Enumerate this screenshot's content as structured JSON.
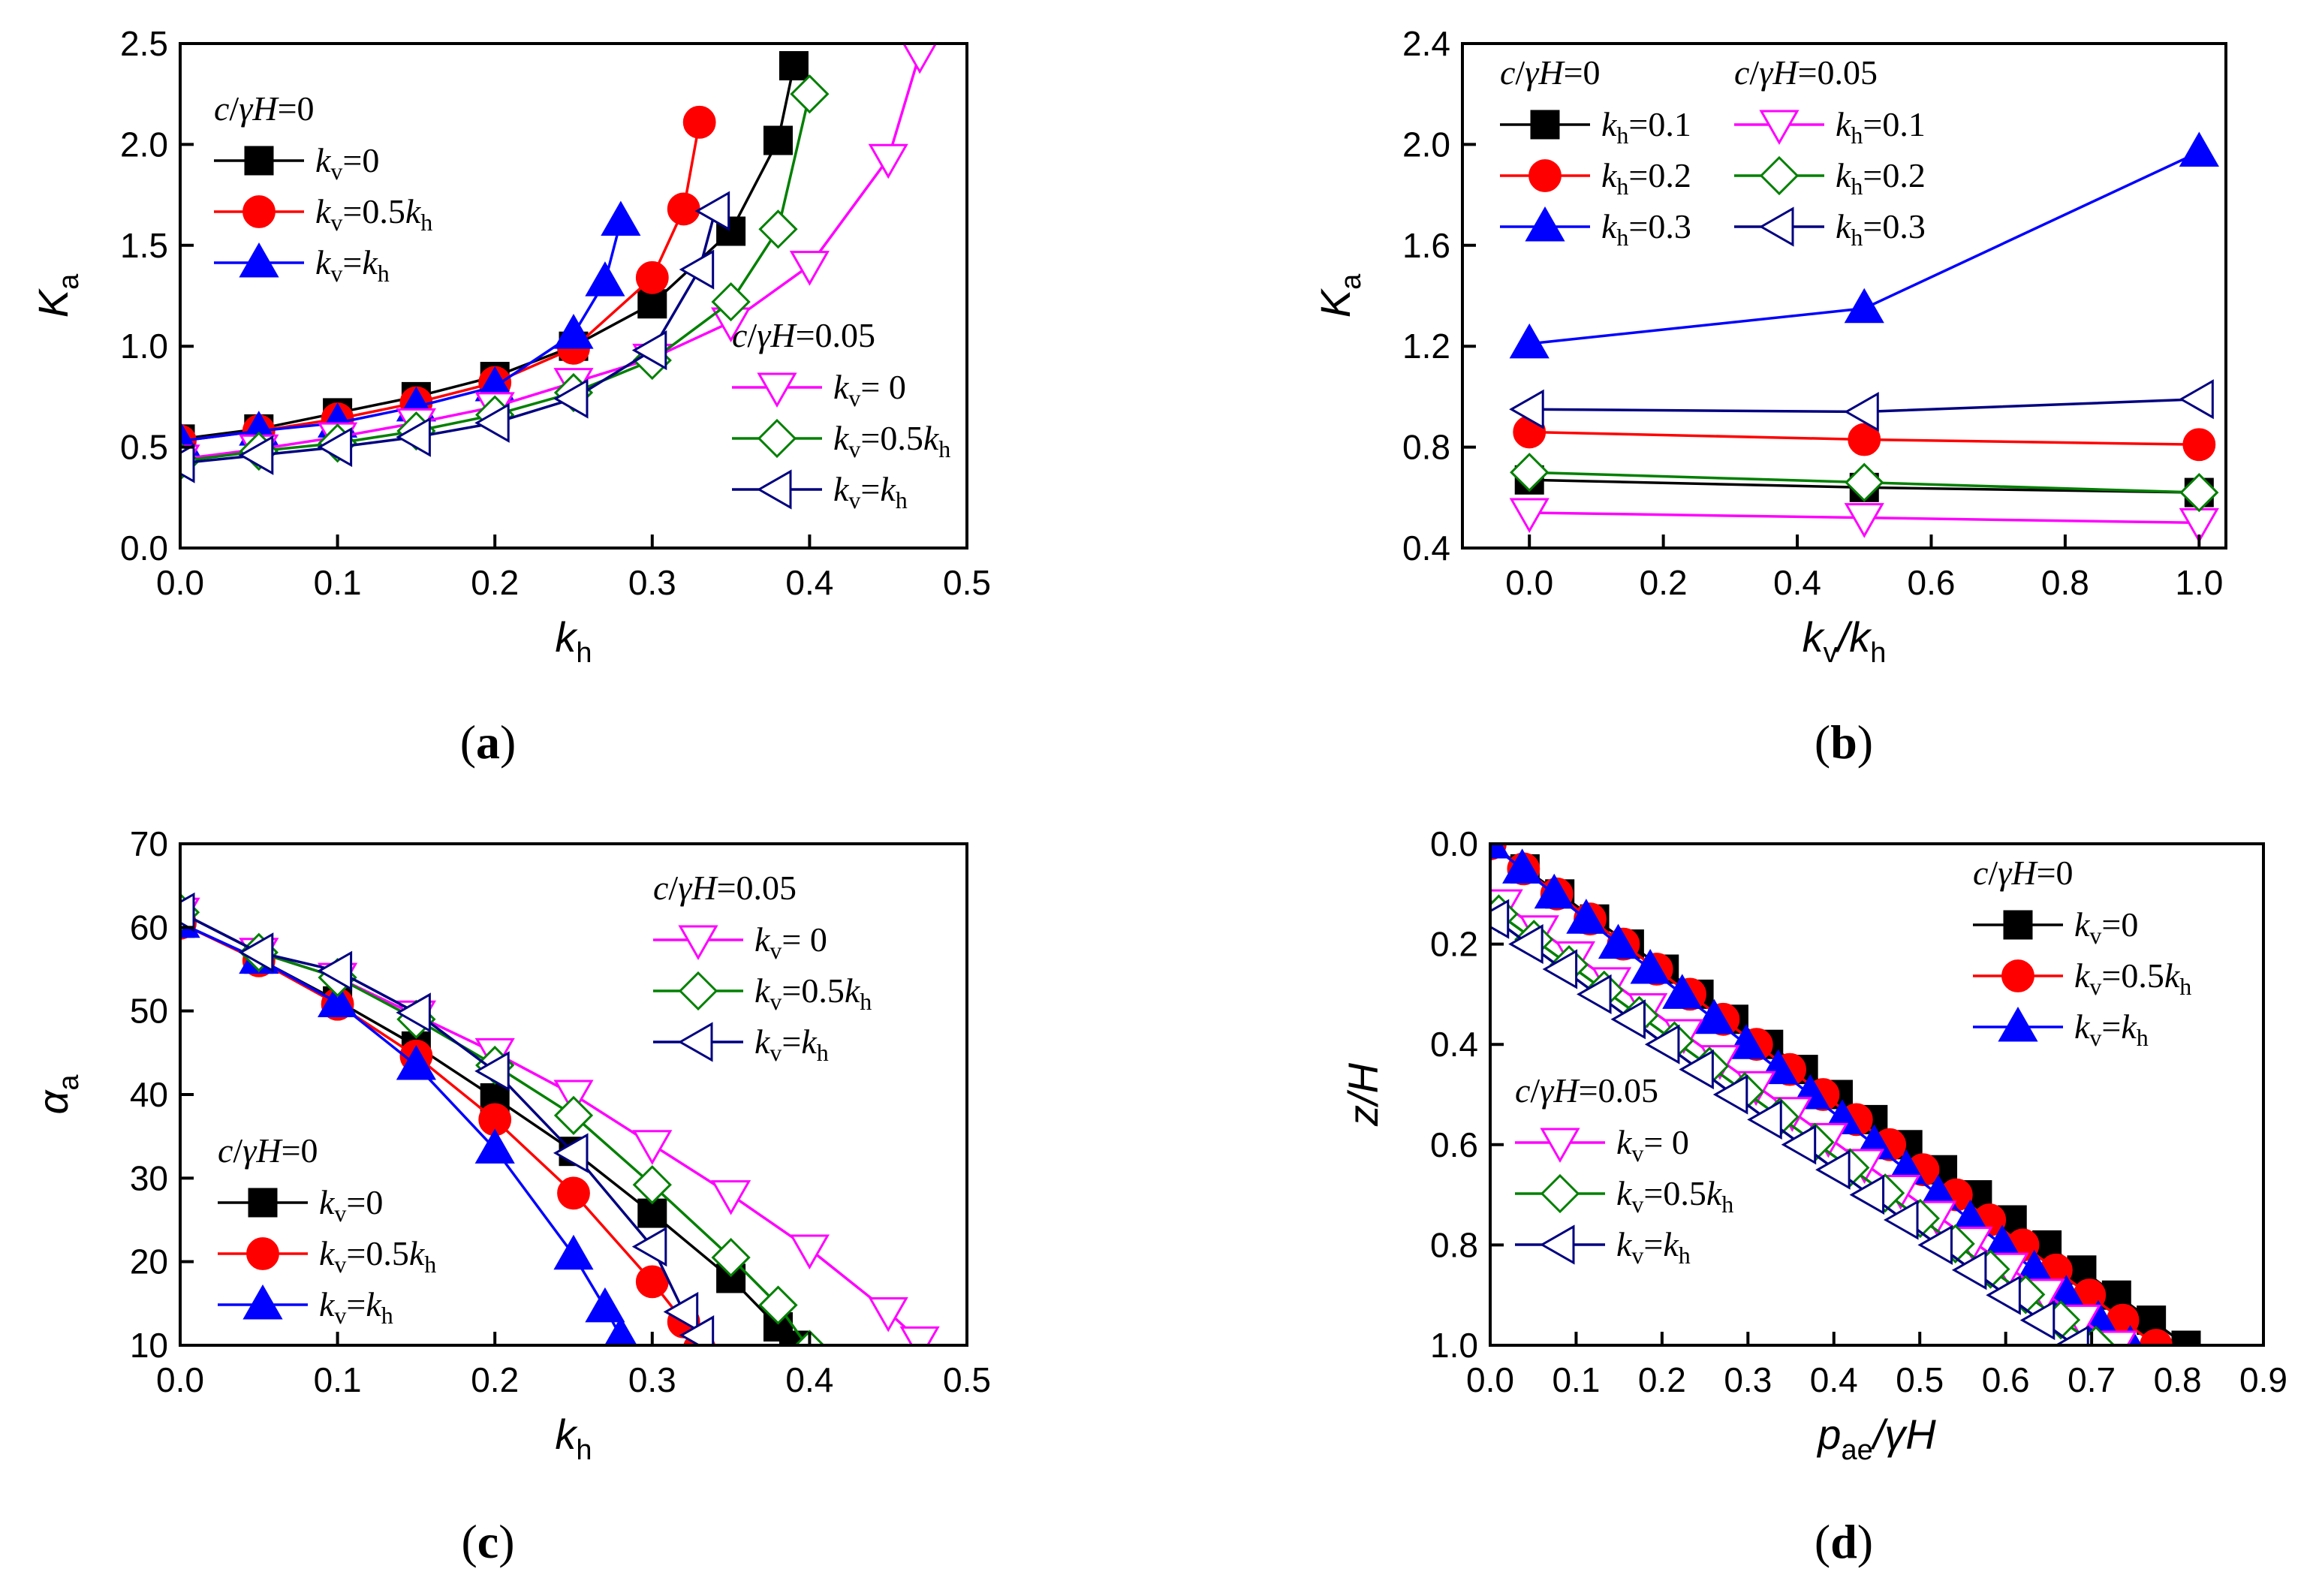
{
  "chart_data": [
    {
      "id": "a",
      "type": "line",
      "caption": "a",
      "xlabel": "k",
      "xlabel_sub": "h",
      "ylabel": "K",
      "ylabel_sub": "a",
      "xlim": [
        0,
        0.5
      ],
      "ylim": [
        0,
        2.5
      ],
      "xticks": [
        "0.0",
        "0.1",
        "0.2",
        "0.3",
        "0.4",
        "0.5"
      ],
      "yticks": [
        "0.0",
        "0.5",
        "1.0",
        "1.5",
        "2.0",
        "2.5"
      ],
      "xtick_values": [
        0,
        0.1,
        0.2,
        0.3,
        0.4,
        0.5
      ],
      "ytick_values": [
        0,
        0.5,
        1.0,
        1.5,
        2.0,
        2.5
      ],
      "legend_groups": [
        {
          "title": "c/γH=0",
          "position": "top-left"
        },
        {
          "title": "c/γH=0.05",
          "position": "bottom-right"
        }
      ],
      "series": [
        {
          "name": "kv=0",
          "label": {
            "main": "k",
            "sub": "v",
            "rest": "=0"
          },
          "group": 0,
          "color": "#000000",
          "marker": "square",
          "filled": true,
          "x": [
            0,
            0.05,
            0.1,
            0.15,
            0.2,
            0.25,
            0.3,
            0.35,
            0.38,
            0.39
          ],
          "y": [
            0.54,
            0.59,
            0.67,
            0.75,
            0.85,
            1.0,
            1.21,
            1.57,
            2.02,
            2.39
          ]
        },
        {
          "name": "kv=0.5kh",
          "label": {
            "main": "k",
            "sub": "v",
            "rest": "=0.5",
            "tail": "k",
            "tailsub": "h"
          },
          "group": 0,
          "color": "#ff0000",
          "marker": "circle",
          "filled": true,
          "x": [
            0,
            0.05,
            0.1,
            0.15,
            0.2,
            0.25,
            0.3,
            0.32,
            0.33
          ],
          "y": [
            0.53,
            0.58,
            0.64,
            0.72,
            0.82,
            0.99,
            1.34,
            1.68,
            2.11
          ]
        },
        {
          "name": "kv=kh",
          "label": {
            "main": "k",
            "sub": "v",
            "rest": "=",
            "tail": "k",
            "tailsub": "h"
          },
          "group": 0,
          "color": "#0000ff",
          "marker": "triangle-up",
          "filled": true,
          "x": [
            0,
            0.05,
            0.1,
            0.15,
            0.2,
            0.25,
            0.27,
            0.28
          ],
          "y": [
            0.53,
            0.58,
            0.62,
            0.7,
            0.8,
            1.06,
            1.32,
            1.62
          ]
        },
        {
          "name": "kv= 0",
          "label": {
            "main": "k",
            "sub": "v",
            "rest": "= 0"
          },
          "group": 1,
          "color": "#ff00ff",
          "marker": "triangle-down",
          "filled": false,
          "x": [
            0,
            0.05,
            0.1,
            0.15,
            0.2,
            0.25,
            0.3,
            0.35,
            0.4,
            0.45,
            0.47
          ],
          "y": [
            0.44,
            0.49,
            0.55,
            0.62,
            0.7,
            0.82,
            0.94,
            1.12,
            1.4,
            1.93,
            2.45
          ]
        },
        {
          "name": "kv=0.5kh",
          "label": {
            "main": "k",
            "sub": "v",
            "rest": "=0.5",
            "tail": "k",
            "tailsub": "h"
          },
          "group": 1,
          "color": "#008000",
          "marker": "diamond",
          "filled": false,
          "x": [
            0,
            0.05,
            0.1,
            0.15,
            0.2,
            0.25,
            0.3,
            0.35,
            0.38,
            0.4
          ],
          "y": [
            0.43,
            0.48,
            0.52,
            0.58,
            0.66,
            0.77,
            0.93,
            1.22,
            1.58,
            2.25
          ]
        },
        {
          "name": "kv=kh",
          "label": {
            "main": "k",
            "sub": "v",
            "rest": "=",
            "tail": "k",
            "tailsub": "h"
          },
          "group": 1,
          "color": "#000080",
          "marker": "triangle-left",
          "filled": false,
          "x": [
            0,
            0.05,
            0.1,
            0.15,
            0.2,
            0.25,
            0.3,
            0.33,
            0.34
          ],
          "y": [
            0.42,
            0.46,
            0.5,
            0.55,
            0.62,
            0.74,
            0.98,
            1.38,
            1.67
          ]
        }
      ]
    },
    {
      "id": "b",
      "type": "line",
      "caption": "b",
      "xlabel": "k",
      "xlabel_sub": "v",
      "xlabel_mid": "/k",
      "xlabel_sub2": "h",
      "ylabel": "K",
      "ylabel_sub": "a",
      "xlim": [
        -0.1,
        1.04
      ],
      "ylim": [
        0.4,
        2.4
      ],
      "xticks": [
        "0.0",
        "0.2",
        "0.4",
        "0.6",
        "0.8",
        "1.0"
      ],
      "yticks": [
        "0.4",
        "0.8",
        "1.2",
        "1.6",
        "2.0",
        "2.4"
      ],
      "xtick_values": [
        0,
        0.2,
        0.4,
        0.6,
        0.8,
        1.0
      ],
      "ytick_values": [
        0.4,
        0.8,
        1.2,
        1.6,
        2.0,
        2.4
      ],
      "legend_groups": [
        {
          "title": "c/γH=0",
          "position": "top-left"
        },
        {
          "title": "c/γH=0.05",
          "position": "top-center"
        }
      ],
      "series": [
        {
          "name": "kh=0.1",
          "label": {
            "main": "k",
            "sub": "h",
            "rest": "=0.1"
          },
          "group": 0,
          "color": "#000000",
          "marker": "square",
          "filled": true,
          "x": [
            0,
            0.5,
            1.0
          ],
          "y": [
            0.67,
            0.64,
            0.62
          ]
        },
        {
          "name": "kh=0.2",
          "label": {
            "main": "k",
            "sub": "h",
            "rest": "=0.2"
          },
          "group": 0,
          "color": "#ff0000",
          "marker": "circle",
          "filled": true,
          "x": [
            0,
            0.5,
            1.0
          ],
          "y": [
            0.86,
            0.83,
            0.81
          ]
        },
        {
          "name": "kh=0.3",
          "label": {
            "main": "k",
            "sub": "h",
            "rest": "=0.3"
          },
          "group": 0,
          "color": "#0000ff",
          "marker": "triangle-up",
          "filled": true,
          "x": [
            0,
            0.5,
            1.0
          ],
          "y": [
            1.21,
            1.35,
            1.97
          ]
        },
        {
          "name": "kh=0.1",
          "label": {
            "main": "k",
            "sub": "h",
            "rest": "=0.1"
          },
          "group": 1,
          "color": "#ff00ff",
          "marker": "triangle-down",
          "filled": false,
          "x": [
            0,
            0.5,
            1.0
          ],
          "y": [
            0.54,
            0.52,
            0.5
          ]
        },
        {
          "name": "kh=0.2",
          "label": {
            "main": "k",
            "sub": "h",
            "rest": "=0.2"
          },
          "group": 1,
          "color": "#008000",
          "marker": "diamond",
          "filled": false,
          "x": [
            0,
            0.5,
            1.0
          ],
          "y": [
            0.7,
            0.66,
            0.62
          ]
        },
        {
          "name": "kh=0.3",
          "label": {
            "main": "k",
            "sub": "h",
            "rest": "=0.3"
          },
          "group": 1,
          "color": "#000080",
          "marker": "triangle-left",
          "filled": false,
          "x": [
            0,
            0.5,
            1.0
          ],
          "y": [
            0.95,
            0.94,
            0.99
          ]
        }
      ]
    },
    {
      "id": "c",
      "type": "line",
      "caption": "c",
      "xlabel": "k",
      "xlabel_sub": "h",
      "ylabel": "α",
      "ylabel_sub": "a",
      "xlim": [
        0,
        0.5
      ],
      "ylim": [
        10,
        70
      ],
      "xticks": [
        "0.0",
        "0.1",
        "0.2",
        "0.3",
        "0.4",
        "0.5"
      ],
      "yticks": [
        "10",
        "20",
        "30",
        "40",
        "50",
        "60",
        "70"
      ],
      "xtick_values": [
        0,
        0.1,
        0.2,
        0.3,
        0.4,
        0.5
      ],
      "ytick_values": [
        10,
        20,
        30,
        40,
        50,
        60,
        70
      ],
      "legend_groups": [
        {
          "title": "c/γH=0",
          "position": "bottom-left"
        },
        {
          "title": "c/γH=0.05",
          "position": "top-right"
        }
      ],
      "series": [
        {
          "name": "kv=0",
          "label": {
            "main": "k",
            "sub": "v",
            "rest": "=0"
          },
          "group": 0,
          "color": "#000000",
          "marker": "square",
          "filled": true,
          "x": [
            0,
            0.05,
            0.1,
            0.15,
            0.2,
            0.25,
            0.3,
            0.35,
            0.38,
            0.39
          ],
          "y": [
            60.5,
            56.2,
            51.2,
            45.8,
            39.6,
            33.2,
            25.8,
            18.0,
            12.2,
            10.0
          ]
        },
        {
          "name": "kv=0.5kh",
          "label": {
            "main": "k",
            "sub": "v",
            "rest": "=0.5",
            "tail": "k",
            "tailsub": "h"
          },
          "group": 0,
          "color": "#ff0000",
          "marker": "circle",
          "filled": true,
          "x": [
            0,
            0.05,
            0.1,
            0.15,
            0.2,
            0.25,
            0.3,
            0.32,
            0.33
          ],
          "y": [
            60.5,
            56.0,
            50.8,
            44.6,
            37.0,
            28.2,
            17.6,
            12.8,
            9.6
          ]
        },
        {
          "name": "kv=kh",
          "label": {
            "main": "k",
            "sub": "v",
            "rest": "=",
            "tail": "k",
            "tailsub": "h"
          },
          "group": 0,
          "color": "#0000ff",
          "marker": "triangle-up",
          "filled": true,
          "x": [
            0,
            0.05,
            0.1,
            0.15,
            0.2,
            0.25,
            0.27,
            0.28
          ],
          "y": [
            60.5,
            56.2,
            51.0,
            43.5,
            33.5,
            20.8,
            14.5,
            11.0
          ]
        },
        {
          "name": "kv= 0",
          "label": {
            "main": "k",
            "sub": "v",
            "rest": "= 0"
          },
          "group": 1,
          "color": "#ff00ff",
          "marker": "triangle-down",
          "filled": false,
          "x": [
            0,
            0.05,
            0.1,
            0.15,
            0.2,
            0.25,
            0.3,
            0.35,
            0.4,
            0.45,
            0.47
          ],
          "y": [
            61.8,
            57.0,
            54.0,
            49.5,
            45.0,
            40.0,
            34.0,
            28.0,
            21.5,
            14.0,
            10.5
          ]
        },
        {
          "name": "kv=0.5kh",
          "label": {
            "main": "k",
            "sub": "v",
            "rest": "=0.5",
            "tail": "k",
            "tailsub": "h"
          },
          "group": 1,
          "color": "#008000",
          "marker": "diamond",
          "filled": false,
          "x": [
            0,
            0.05,
            0.1,
            0.15,
            0.2,
            0.25,
            0.3,
            0.35,
            0.38,
            0.4
          ],
          "y": [
            61.8,
            57.0,
            54.0,
            49.0,
            43.5,
            37.5,
            29.2,
            20.5,
            14.8,
            9.5
          ]
        },
        {
          "name": "kv=kh",
          "label": {
            "main": "k",
            "sub": "v",
            "rest": "=",
            "tail": "k",
            "tailsub": "h"
          },
          "group": 1,
          "color": "#000080",
          "marker": "triangle-left",
          "filled": false,
          "x": [
            0,
            0.05,
            0.1,
            0.15,
            0.2,
            0.25,
            0.3,
            0.32,
            0.33
          ],
          "y": [
            61.8,
            57.0,
            54.8,
            49.8,
            42.8,
            33.0,
            21.8,
            14.0,
            11.2
          ]
        }
      ]
    },
    {
      "id": "d",
      "type": "line",
      "caption": "d",
      "xlabel": "p",
      "xlabel_sub": "ae",
      "xlabel_mid": "/γH",
      "ylabel": "z/H",
      "ylabel_sub": "",
      "xlim": [
        0,
        0.9
      ],
      "ylim": [
        0,
        1.0
      ],
      "y_inverted": true,
      "xticks": [
        "0.0",
        "0.1",
        "0.2",
        "0.3",
        "0.4",
        "0.5",
        "0.6",
        "0.7",
        "0.8",
        "0.9"
      ],
      "yticks": [
        "0.0",
        "0.2",
        "0.4",
        "0.6",
        "0.8",
        "1.0"
      ],
      "xtick_values": [
        0,
        0.1,
        0.2,
        0.3,
        0.4,
        0.5,
        0.6,
        0.7,
        0.8,
        0.9
      ],
      "ytick_values": [
        0,
        0.2,
        0.4,
        0.6,
        0.8,
        1.0
      ],
      "legend_groups": [
        {
          "title": "c/γH=0",
          "position": "top-right"
        },
        {
          "title": "c/γH=0.05",
          "position": "center-left"
        }
      ],
      "series": [
        {
          "name": "kv=0",
          "label": {
            "main": "k",
            "sub": "v",
            "rest": "=0"
          },
          "group": 0,
          "color": "#000000",
          "marker": "square",
          "filled": true,
          "profile": {
            "x0": 0.0,
            "y0": 0.0,
            "x1": 0.81,
            "y1": 1.0,
            "n": 21
          }
        },
        {
          "name": "kv=0.5kh",
          "label": {
            "main": "k",
            "sub": "v",
            "rest": "=0.5",
            "tail": "k",
            "tailsub": "h"
          },
          "group": 0,
          "color": "#ff0000",
          "marker": "circle",
          "filled": true,
          "profile": {
            "x0": 0.0,
            "y0": 0.0,
            "x1": 0.775,
            "y1": 1.0,
            "n": 21
          }
        },
        {
          "name": "kv=kh",
          "label": {
            "main": "k",
            "sub": "v",
            "rest": "=",
            "tail": "k",
            "tailsub": "h"
          },
          "group": 0,
          "color": "#0000ff",
          "marker": "triangle-up",
          "filled": true,
          "profile": {
            "x0": 0.0,
            "y0": 0.0,
            "x1": 0.745,
            "y1": 1.0,
            "n": 21
          }
        },
        {
          "name": "kv= 0",
          "label": {
            "main": "k",
            "sub": "v",
            "rest": "= 0"
          },
          "group": 1,
          "color": "#ff00ff",
          "marker": "triangle-down",
          "filled": false,
          "profile": {
            "x0": 0.015,
            "y0": 0.12,
            "x1": 0.73,
            "y1": 1.0,
            "n": 18
          }
        },
        {
          "name": "kv=0.5kh",
          "label": {
            "main": "k",
            "sub": "v",
            "rest": "=0.5",
            "tail": "k",
            "tailsub": "h"
          },
          "group": 1,
          "color": "#008000",
          "marker": "diamond",
          "filled": false,
          "profile": {
            "x0": 0.01,
            "y0": 0.14,
            "x1": 0.705,
            "y1": 1.0,
            "n": 18
          }
        },
        {
          "name": "kv=kh",
          "label": {
            "main": "k",
            "sub": "v",
            "rest": "=",
            "tail": "k",
            "tailsub": "h"
          },
          "group": 1,
          "color": "#000080",
          "marker": "triangle-left",
          "filled": false,
          "profile": {
            "x0": 0.005,
            "y0": 0.15,
            "x1": 0.68,
            "y1": 1.0,
            "n": 18
          }
        }
      ]
    }
  ]
}
